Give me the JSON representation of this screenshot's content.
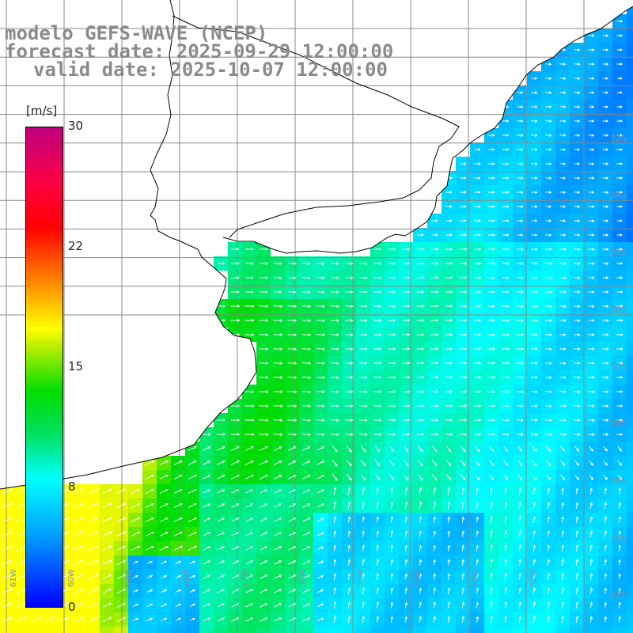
{
  "header": {
    "line1": "modelo GEFS-WAVE (NCEP)",
    "line2": "forecast date: 2025-09-29 12:00:00",
    "line3": "valid date: 2025-10-07 12:00:00"
  },
  "colorbar": {
    "units": "[m/s]",
    "ticks": [
      "30",
      "22",
      "15",
      "8",
      "0"
    ],
    "tick_values": [
      30,
      22,
      15,
      8,
      0
    ],
    "range": [
      0,
      30
    ],
    "colors": [
      "#0000ff",
      "#00a0ff",
      "#00ffff",
      "#00dd00",
      "#ffff00",
      "#ff9000",
      "#ff0000",
      "#c00080"
    ]
  },
  "grid_labels": {
    "lat": [
      "33S",
      "34S",
      "35S",
      "36S",
      "37S",
      "38S",
      "39S",
      "40S",
      "41S"
    ],
    "lon": [
      "61W",
      "60W",
      "59W",
      "58W",
      "57W",
      "56W",
      "55W",
      "54W",
      "53W",
      "52W"
    ]
  },
  "colors": {
    "land": "#ffffff",
    "coast": "#000000",
    "grid": "#888888"
  }
}
